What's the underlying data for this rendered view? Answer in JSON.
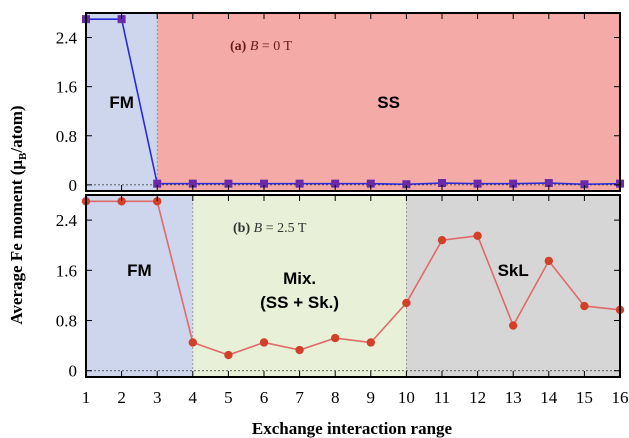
{
  "chart_data": [
    {
      "type": "line",
      "panel": "top",
      "annotation_prefix": "(a)",
      "annotation_var": "B",
      "annotation_rest": " = 0 T",
      "x": [
        1,
        2,
        3,
        4,
        5,
        6,
        7,
        8,
        9,
        10,
        11,
        12,
        13,
        14,
        15,
        16
      ],
      "series": [
        {
          "values": [
            2.7,
            2.7,
            0.02,
            0.02,
            0.02,
            0.02,
            0.02,
            0.02,
            0.02,
            0.01,
            0.03,
            0.02,
            0.02,
            0.03,
            0.01,
            0.02
          ]
        }
      ],
      "xlim": [
        1,
        16
      ],
      "ylim": [
        -0.1,
        2.8
      ],
      "yticks": [
        "0",
        "0.8",
        "1.6",
        "2.4"
      ],
      "ytick_values": [
        0,
        0.8,
        1.6,
        2.4
      ],
      "regions": [
        {
          "label": "FM",
          "x_start": 1,
          "x_end": 3,
          "color": "#cdd6ec"
        },
        {
          "label": "SS",
          "x_start": 3,
          "x_end": 16,
          "color": "#f4aaa6"
        }
      ],
      "line_color": "#2a2ad8",
      "marker_color": "#6a2aa8",
      "marker": "square"
    },
    {
      "type": "line",
      "panel": "bottom",
      "annotation_prefix": "(b)",
      "annotation_var": "B",
      "annotation_rest": " = 2.5 T",
      "x": [
        1,
        2,
        3,
        4,
        5,
        6,
        7,
        8,
        9,
        10,
        11,
        12,
        13,
        14,
        15,
        16
      ],
      "series": [
        {
          "values": [
            2.7,
            2.7,
            2.7,
            0.45,
            0.25,
            0.45,
            0.33,
            0.52,
            0.45,
            1.08,
            2.08,
            2.15,
            0.72,
            1.75,
            1.03,
            0.97
          ]
        }
      ],
      "xlim": [
        1,
        16
      ],
      "ylim": [
        -0.1,
        2.8
      ],
      "yticks": [
        "0",
        "0.8",
        "1.6",
        "2.4"
      ],
      "ytick_values": [
        0,
        0.8,
        1.6,
        2.4
      ],
      "regions": [
        {
          "label": "FM",
          "x_start": 1,
          "x_end": 4,
          "color": "#cdd6ec"
        },
        {
          "label": "Mix.",
          "label2": "(SS + Sk.)",
          "x_start": 4,
          "x_end": 10,
          "color": "#e8f0d8"
        },
        {
          "label": "SkL",
          "x_start": 10,
          "x_end": 16,
          "color": "#d6d6d6"
        }
      ],
      "line_color": "#e06a6a",
      "marker_color": "#d2402a",
      "marker": "circle"
    }
  ],
  "axes": {
    "xlabel": "Exchange interaction range",
    "ylabel_main": "Average Fe moment (",
    "ylabel_mu": "μ",
    "ylabel_sub": "B",
    "ylabel_end": "/atom)",
    "xticks": [
      "1",
      "2",
      "3",
      "4",
      "5",
      "6",
      "7",
      "8",
      "9",
      "10",
      "11",
      "12",
      "13",
      "14",
      "15",
      "16"
    ]
  }
}
